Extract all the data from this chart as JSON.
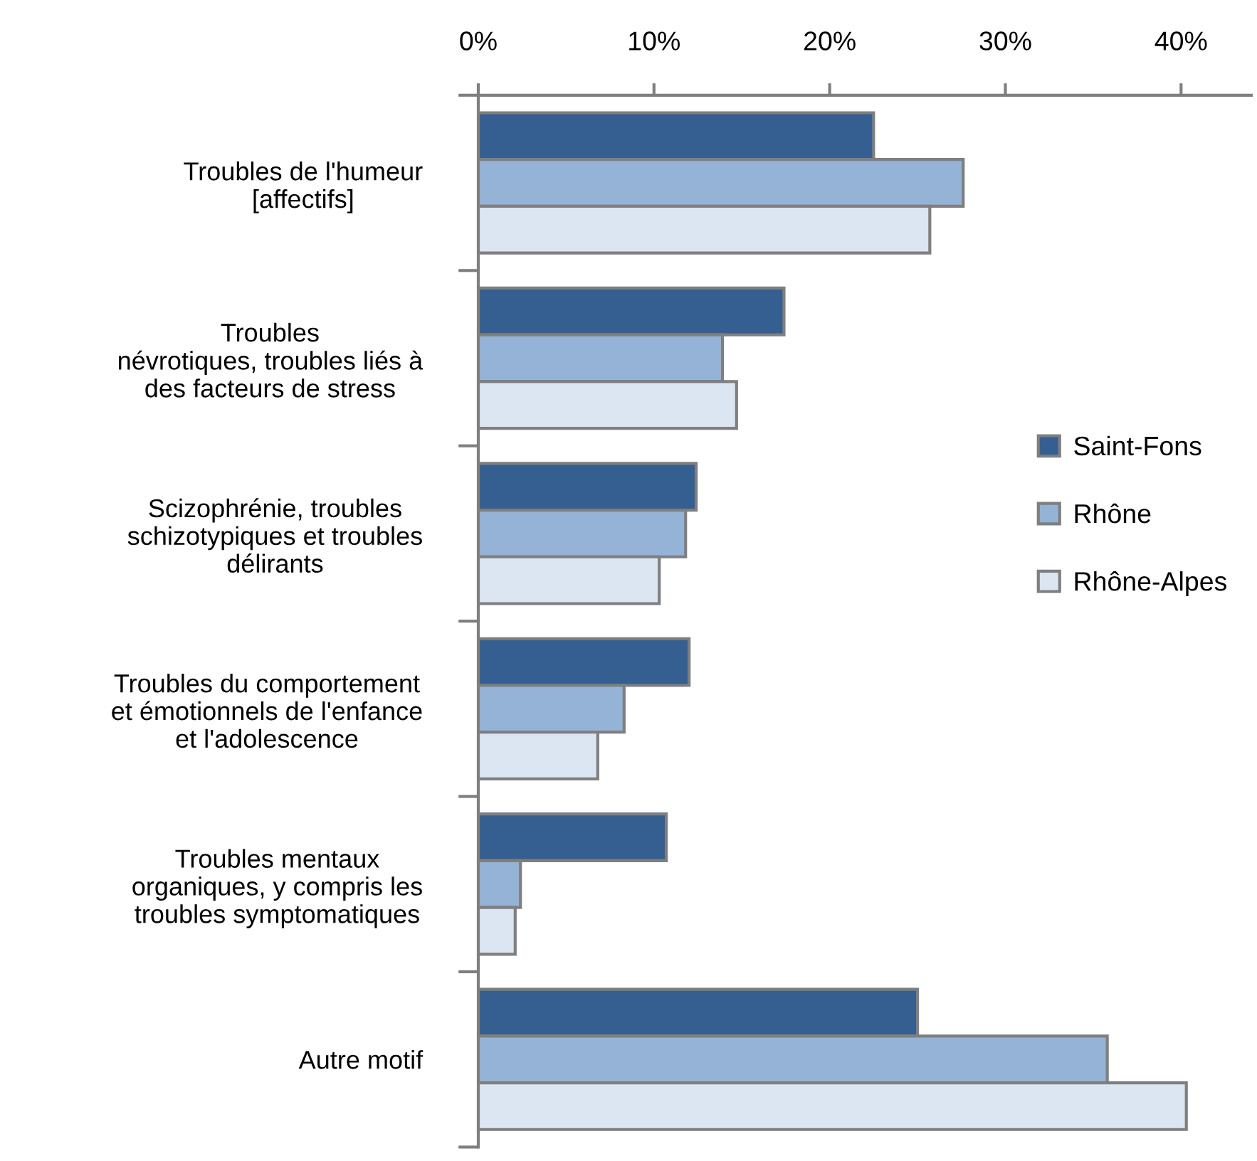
{
  "chart_data": {
    "type": "bar",
    "orientation": "horizontal",
    "categories": [
      "Troubles de l'humeur\n[affectifs]",
      "Troubles\nnévrotiques, troubles liés à\ndes facteurs de stress",
      "Scizophrénie, troubles\nschizotypiques et troubles\ndélirants",
      "Troubles du comportement\net émotionnels de l'enfance\net l'adolescence",
      "Troubles mentaux\norganiques, y compris les\ntroubles symptomatiques",
      "Autre motif"
    ],
    "series": [
      {
        "name": "Saint-Fons",
        "color": "#365f91",
        "values": [
          22.5,
          17.4,
          12.4,
          12.0,
          10.7,
          25.0
        ]
      },
      {
        "name": "Rhône",
        "color": "#95b3d7",
        "values": [
          27.6,
          13.9,
          11.8,
          8.3,
          2.4,
          35.8
        ]
      },
      {
        "name": "Rhône-Alpes",
        "color": "#dce6f2",
        "values": [
          25.7,
          14.7,
          10.3,
          6.8,
          2.1,
          40.3
        ]
      }
    ],
    "xlim": [
      0,
      44
    ],
    "xticks": [
      {
        "value": 0,
        "label": "0%"
      },
      {
        "value": 10,
        "label": "10%"
      },
      {
        "value": 20,
        "label": "20%"
      },
      {
        "value": 30,
        "label": "30%"
      },
      {
        "value": 40,
        "label": "40%"
      }
    ],
    "grid": false,
    "legend": "right"
  }
}
